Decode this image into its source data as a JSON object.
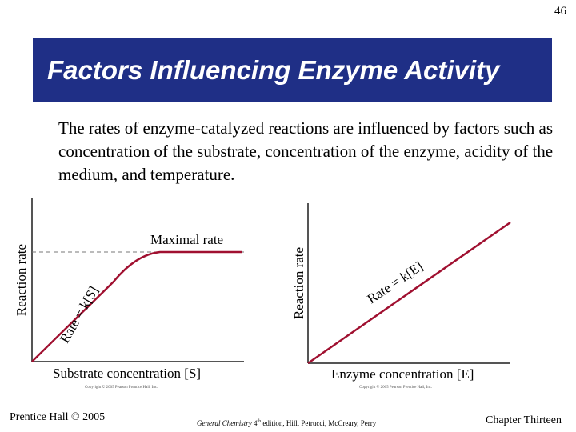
{
  "page_number": "46",
  "title": "Factors Influencing Enzyme Activity",
  "body": "The rates of enzyme-catalyzed reactions are influenced by factors such as concentration of the substrate, concentration of the enzyme, acidity of the medium, and temperature.",
  "chart_data": [
    {
      "type": "line",
      "xlabel": "Substrate concentration [S]",
      "ylabel": "Reaction rate",
      "annotations": [
        "Maximal rate",
        "Rate = k[S]"
      ],
      "copyright": "Copyright © 2005 Pearson Prentice Hall, Inc.",
      "color": "#a01030",
      "shape": "saturation curve rising linearly then leveling off at maximal rate (dashed reference line)"
    },
    {
      "type": "line",
      "xlabel": "Enzyme concentration [E]",
      "ylabel": "Reaction rate",
      "annotations": [
        "Rate = k[E]"
      ],
      "copyright": "Copyright © 2005 Pearson Prentice Hall, Inc.",
      "color": "#a01030",
      "shape": "straight line through origin"
    }
  ],
  "footer": {
    "left": "Prentice Hall © 2005",
    "book": "General Chemistry",
    "edition_num": "4",
    "edition_sup": "th",
    "rest": " edition, Hill, Petrucci, McCreary, Perry",
    "right": "Chapter Thirteen"
  }
}
